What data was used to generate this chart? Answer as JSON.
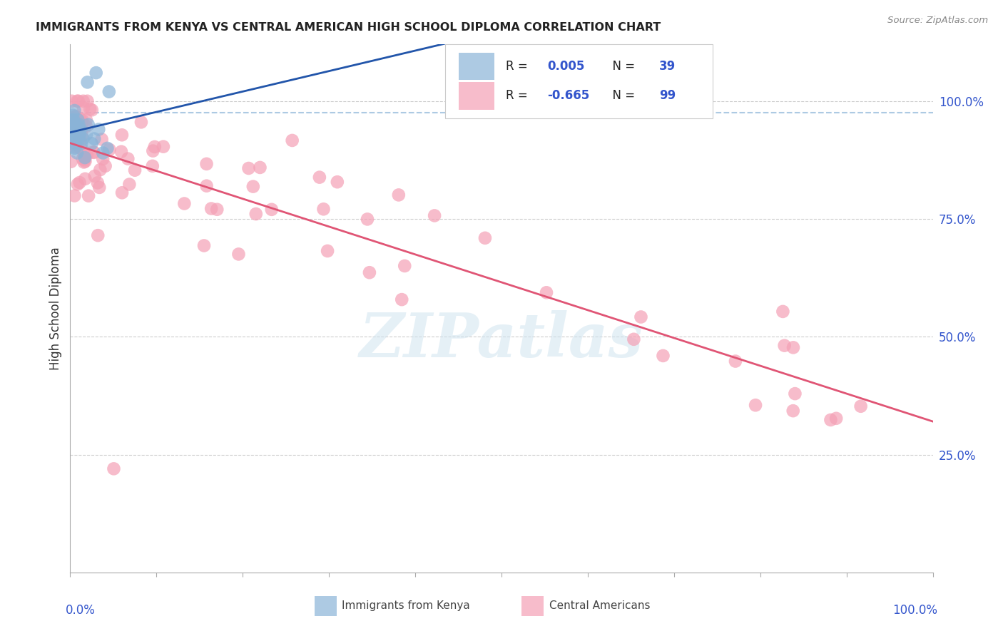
{
  "title": "IMMIGRANTS FROM KENYA VS CENTRAL AMERICAN HIGH SCHOOL DIPLOMA CORRELATION CHART",
  "source": "Source: ZipAtlas.com",
  "ylabel": "High School Diploma",
  "ytick_labels": [
    "100.0%",
    "75.0%",
    "50.0%",
    "25.0%"
  ],
  "ytick_values": [
    1.0,
    0.75,
    0.5,
    0.25
  ],
  "xlim": [
    0.0,
    1.0
  ],
  "ylim": [
    0.0,
    1.12
  ],
  "kenya_color": "#8ab4d8",
  "central_color": "#f4a0b5",
  "kenya_line_color": "#2255aa",
  "central_line_color": "#e05575",
  "dashed_line_color": "#8ab4d8",
  "dashed_line_y": 0.975,
  "watermark": "ZIPatlas",
  "background_color": "#ffffff",
  "grid_color": "#cccccc",
  "title_color": "#222222",
  "tick_color": "#3355cc",
  "legend_label_kenya": "Immigrants from Kenya",
  "legend_label_central": "Central Americans",
  "legend_r_kenya": "0.005",
  "legend_n_kenya": "39",
  "legend_r_central": "-0.665",
  "legend_n_central": "99"
}
